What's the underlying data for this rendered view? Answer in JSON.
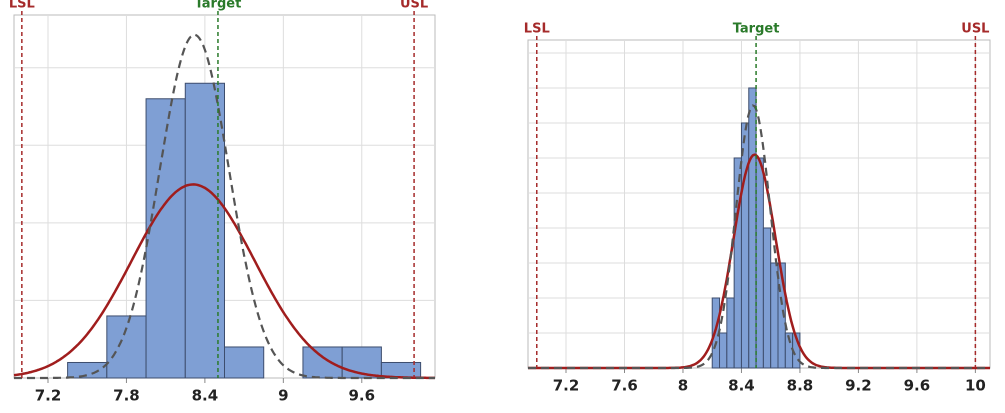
{
  "chart_data": [
    {
      "type": "histogram",
      "bins": [
        7.35,
        7.65,
        7.95,
        8.25,
        8.55,
        8.85,
        9.15,
        9.45,
        9.75,
        10.05
      ],
      "counts": [
        1,
        4,
        18,
        19,
        2,
        0,
        2,
        2,
        1
      ],
      "color": "#7f9fd4",
      "xlim": [
        6.94,
        10.16
      ],
      "xticks": [
        7.2,
        7.8,
        8.4,
        9.0,
        9.6
      ],
      "ylim": [
        0,
        23.4
      ],
      "yticks": [
        5,
        10,
        15,
        20
      ],
      "show_ytick_labels": false,
      "grid": true,
      "curves": [
        {
          "mean": 8.31,
          "sd": 0.47,
          "color": "#a01d1d",
          "dashed": false
        },
        {
          "mean": 8.32,
          "sd": 0.265,
          "color": "#555555",
          "dashed": true
        }
      ],
      "spec_lines": [
        {
          "label": "LSL",
          "value": 7.0,
          "color": "#a52a2a"
        },
        {
          "label": "Target",
          "value": 8.5,
          "color": "#2a7a2a"
        },
        {
          "label": "USL",
          "value": 10.0,
          "color": "#a52a2a"
        }
      ]
    },
    {
      "type": "histogram",
      "bins": [
        8.2,
        8.25,
        8.3,
        8.35,
        8.4,
        8.45,
        8.5,
        8.55,
        8.6,
        8.65,
        8.7,
        8.75,
        8.8
      ],
      "counts": [
        2,
        1,
        2,
        6,
        7,
        8,
        6,
        4,
        3,
        3,
        1,
        1
      ],
      "color": "#7f9fd4",
      "xlim": [
        6.94,
        10.1
      ],
      "xticks": [
        7.2,
        7.6,
        8.0,
        8.4,
        8.8,
        9.2,
        9.6,
        10.0
      ],
      "ylim": [
        0,
        9.37
      ],
      "yticks": [
        1,
        2,
        3,
        4,
        5,
        6,
        7,
        8,
        9
      ],
      "show_ytick_labels": false,
      "grid": true,
      "curves": [
        {
          "mean": 8.49,
          "sd": 0.144,
          "color": "#a01d1d",
          "dashed": false
        },
        {
          "mean": 8.48,
          "sd": 0.117,
          "color": "#555555",
          "dashed": true
        }
      ],
      "spec_lines": [
        {
          "label": "LSL",
          "value": 7.0,
          "color": "#a52a2a"
        },
        {
          "label": "Target",
          "value": 8.5,
          "color": "#2a7a2a"
        },
        {
          "label": "USL",
          "value": 10.0,
          "color": "#a52a2a"
        }
      ]
    }
  ]
}
